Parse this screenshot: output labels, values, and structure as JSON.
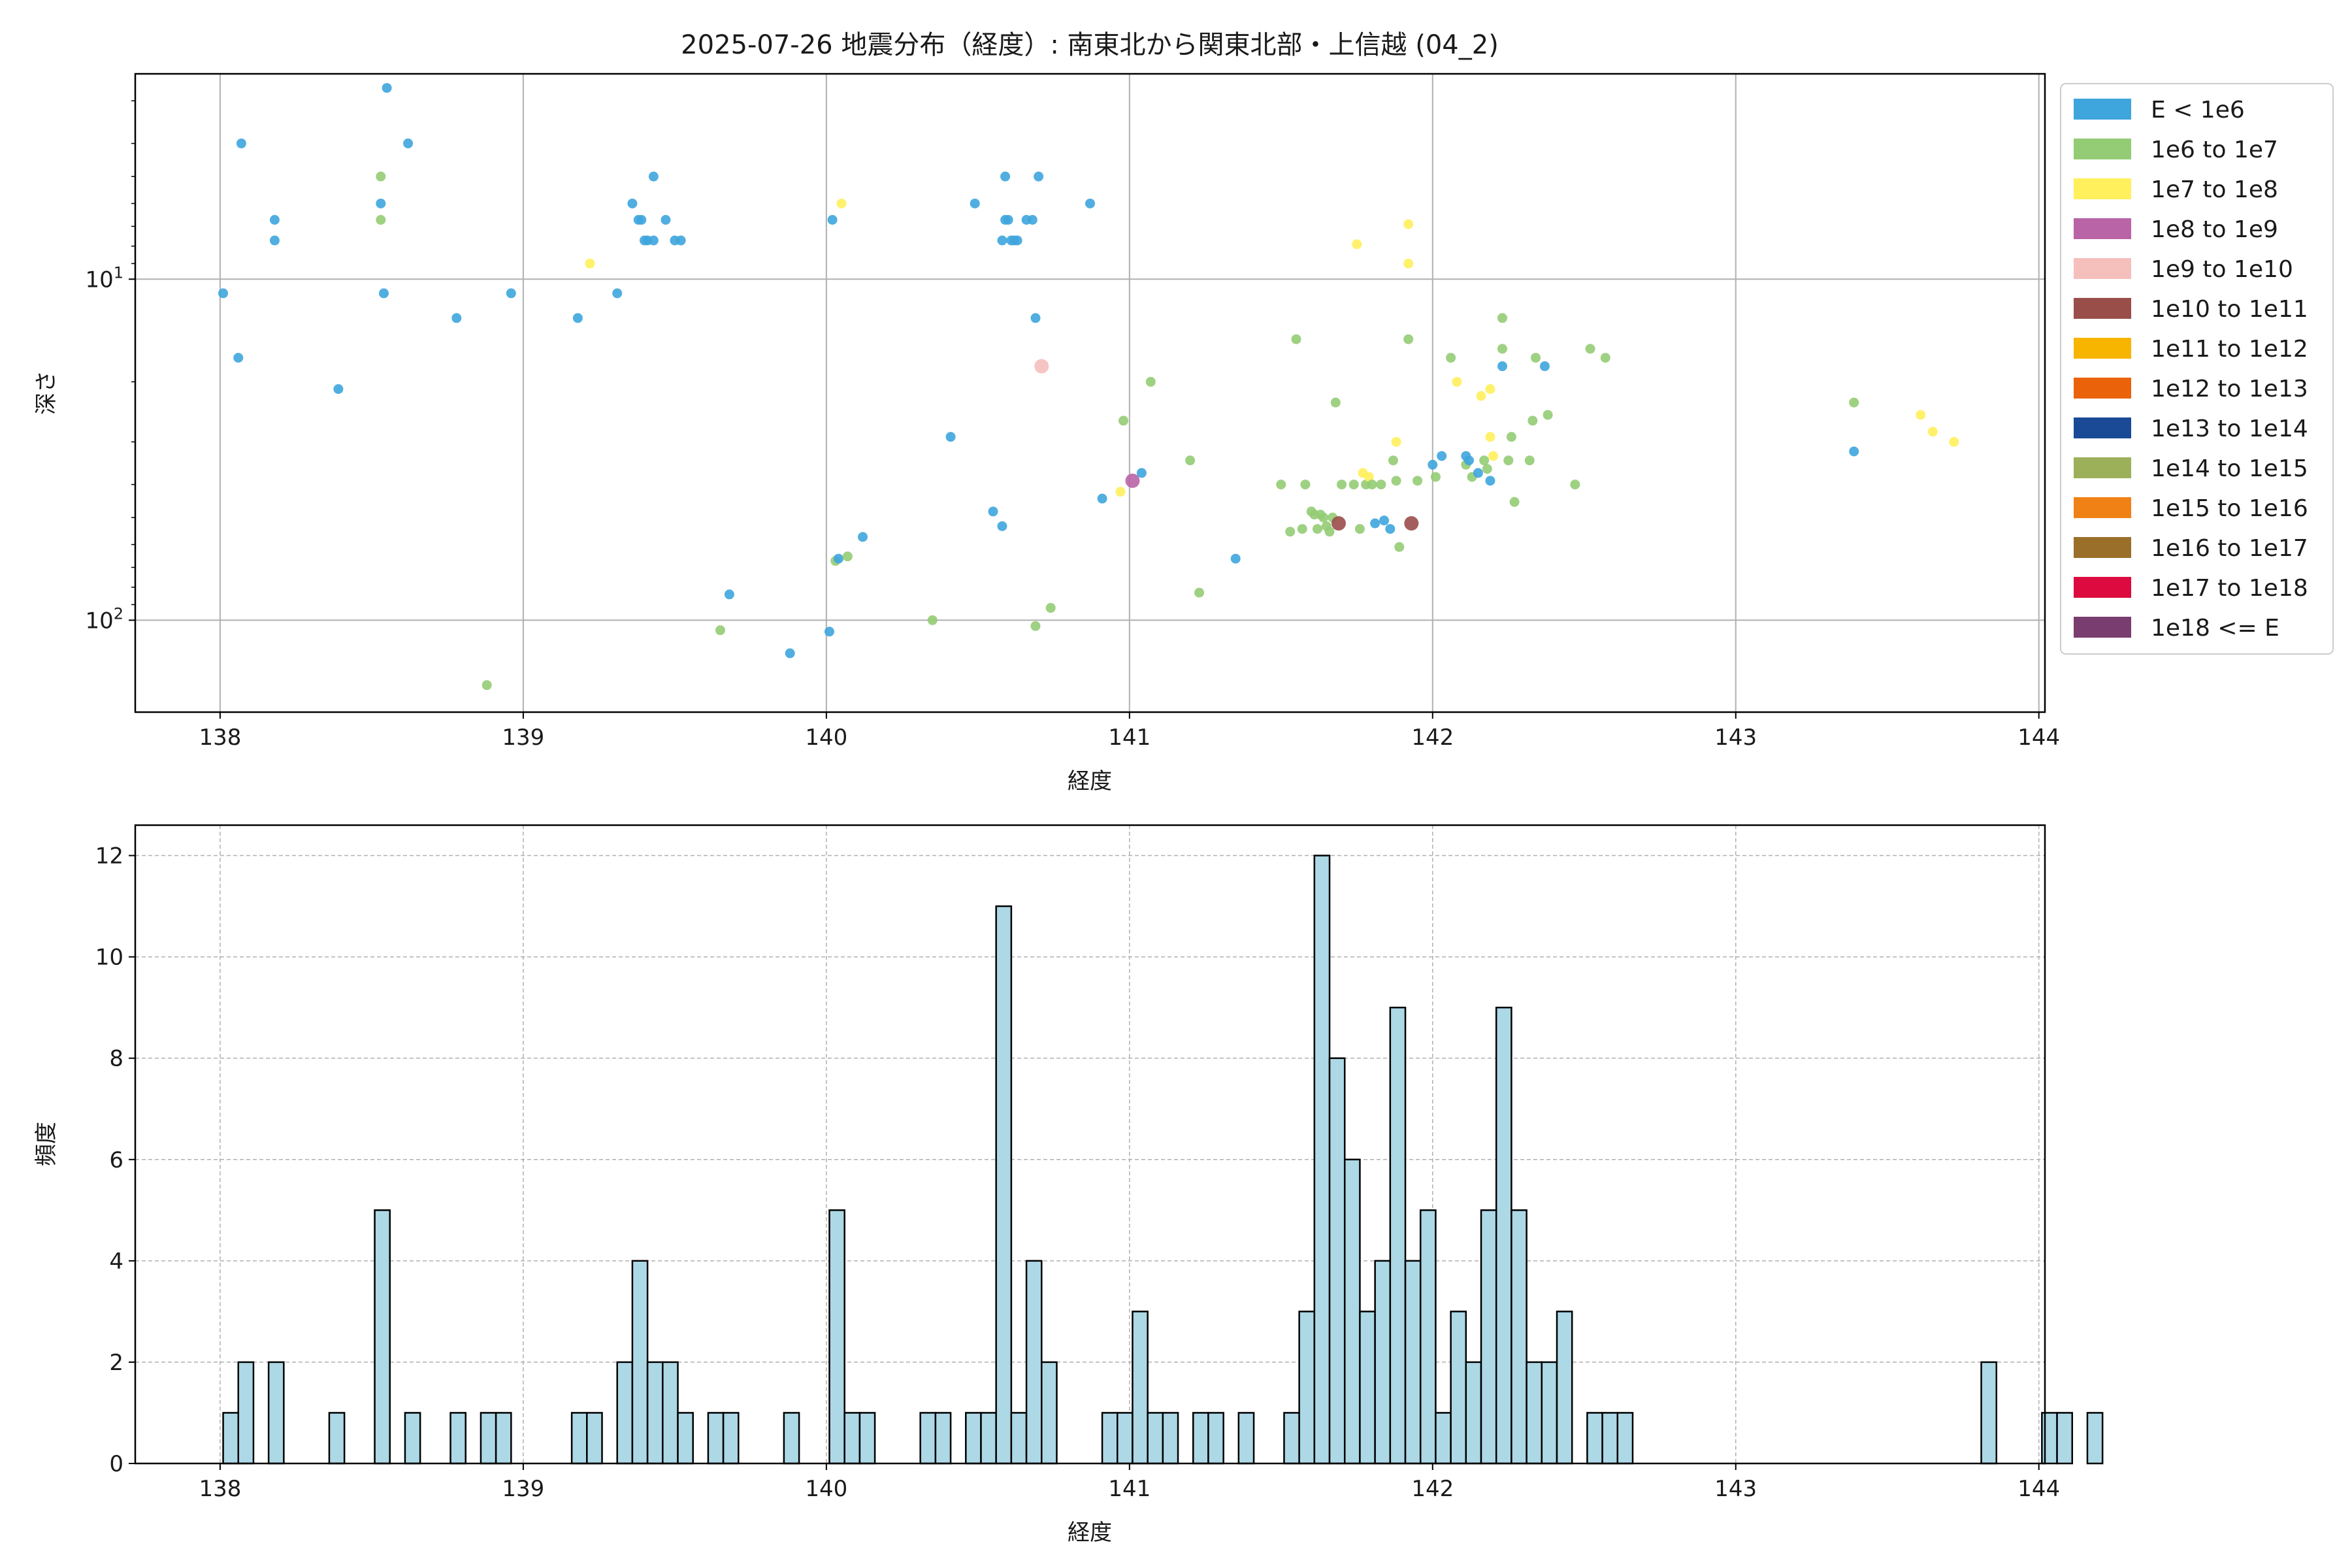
{
  "title": "2025-07-26 地震分布（経度）: 南東北から関東北部・上信越 (04_2)",
  "chart_data": [
    {
      "type": "scatter",
      "xlabel": "経度",
      "ylabel": "深さ",
      "yscale": "log",
      "yinverted": true,
      "xlim": [
        137.72,
        144.02
      ],
      "ylim": [
        186,
        2.5
      ],
      "xticks": [
        138,
        139,
        140,
        141,
        142,
        143,
        144
      ],
      "yticks": [
        {
          "value": 10,
          "base": "10",
          "exp": "1"
        },
        {
          "value": 100,
          "base": "10",
          "exp": "2"
        }
      ],
      "grid": true,
      "legend_position": "outside-right",
      "legend": [
        {
          "label": "E < 1e6",
          "color": "#3ea5dd"
        },
        {
          "label": "1e6 to 1e7",
          "color": "#93cc74"
        },
        {
          "label": "1e7 to 1e8",
          "color": "#fff05c"
        },
        {
          "label": "1e8 to 1e9",
          "color": "#b964a6"
        },
        {
          "label": "1e9 to 1e10",
          "color": "#f5bfbc"
        },
        {
          "label": "1e10 to 1e11",
          "color": "#9a4e4a"
        },
        {
          "label": "1e11 to 1e12",
          "color": "#f7b500"
        },
        {
          "label": "1e12 to 1e13",
          "color": "#ea6209"
        },
        {
          "label": "1e13 to 1e14",
          "color": "#1a4a96"
        },
        {
          "label": "1e14 to 1e15",
          "color": "#9cb05a"
        },
        {
          "label": "1e15 to 1e16",
          "color": "#f08215"
        },
        {
          "label": "1e16 to 1e17",
          "color": "#9a6f2a"
        },
        {
          "label": "1e17 to 1e18",
          "color": "#dc0a3e"
        },
        {
          "label": "1e18 <= E",
          "color": "#7a3d6f"
        }
      ],
      "points": [
        {
          "x": 138.01,
          "y": 11,
          "c": 0
        },
        {
          "x": 138.06,
          "y": 17,
          "c": 0
        },
        {
          "x": 138.07,
          "y": 4,
          "c": 0
        },
        {
          "x": 138.18,
          "y": 6.7,
          "c": 0
        },
        {
          "x": 138.18,
          "y": 7.7,
          "c": 0
        },
        {
          "x": 138.39,
          "y": 21,
          "c": 0
        },
        {
          "x": 138.53,
          "y": 5,
          "c": 1
        },
        {
          "x": 138.53,
          "y": 6,
          "c": 0
        },
        {
          "x": 138.53,
          "y": 6.7,
          "c": 1
        },
        {
          "x": 138.54,
          "y": 11,
          "c": 0
        },
        {
          "x": 138.55,
          "y": 2.75,
          "c": 0
        },
        {
          "x": 138.62,
          "y": 4,
          "c": 0
        },
        {
          "x": 138.78,
          "y": 13,
          "c": 0
        },
        {
          "x": 138.88,
          "y": 155,
          "c": 1
        },
        {
          "x": 138.96,
          "y": 11,
          "c": 0
        },
        {
          "x": 139.18,
          "y": 13,
          "c": 0
        },
        {
          "x": 139.22,
          "y": 9,
          "c": 2
        },
        {
          "x": 139.31,
          "y": 11,
          "c": 0
        },
        {
          "x": 139.36,
          "y": 6,
          "c": 0
        },
        {
          "x": 139.38,
          "y": 6.7,
          "c": 0
        },
        {
          "x": 139.39,
          "y": 6.7,
          "c": 0
        },
        {
          "x": 139.4,
          "y": 7.7,
          "c": 0
        },
        {
          "x": 139.41,
          "y": 7.7,
          "c": 0
        },
        {
          "x": 139.43,
          "y": 5,
          "c": 0
        },
        {
          "x": 139.43,
          "y": 7.7,
          "c": 0
        },
        {
          "x": 139.47,
          "y": 6.7,
          "c": 0
        },
        {
          "x": 139.5,
          "y": 7.7,
          "c": 0
        },
        {
          "x": 139.52,
          "y": 7.7,
          "c": 0
        },
        {
          "x": 139.65,
          "y": 107,
          "c": 1
        },
        {
          "x": 139.68,
          "y": 84,
          "c": 0
        },
        {
          "x": 139.88,
          "y": 125,
          "c": 0
        },
        {
          "x": 140.01,
          "y": 108,
          "c": 0
        },
        {
          "x": 140.02,
          "y": 6.7,
          "c": 0
        },
        {
          "x": 140.03,
          "y": 67,
          "c": 1
        },
        {
          "x": 140.04,
          "y": 66,
          "c": 0
        },
        {
          "x": 140.05,
          "y": 6,
          "c": 2
        },
        {
          "x": 140.07,
          "y": 65,
          "c": 1
        },
        {
          "x": 140.12,
          "y": 57,
          "c": 0
        },
        {
          "x": 140.35,
          "y": 100,
          "c": 1
        },
        {
          "x": 140.41,
          "y": 29,
          "c": 0
        },
        {
          "x": 140.49,
          "y": 6,
          "c": 0
        },
        {
          "x": 140.55,
          "y": 48,
          "c": 0
        },
        {
          "x": 140.58,
          "y": 7.7,
          "c": 0
        },
        {
          "x": 140.58,
          "y": 53,
          "c": 0
        },
        {
          "x": 140.59,
          "y": 5,
          "c": 0
        },
        {
          "x": 140.59,
          "y": 6.7,
          "c": 0
        },
        {
          "x": 140.6,
          "y": 6.7,
          "c": 0
        },
        {
          "x": 140.61,
          "y": 7.7,
          "c": 0
        },
        {
          "x": 140.62,
          "y": 7.7,
          "c": 0
        },
        {
          "x": 140.63,
          "y": 7.7,
          "c": 0
        },
        {
          "x": 140.66,
          "y": 6.7,
          "c": 0
        },
        {
          "x": 140.68,
          "y": 6.7,
          "c": 0
        },
        {
          "x": 140.69,
          "y": 13,
          "c": 0
        },
        {
          "x": 140.69,
          "y": 104,
          "c": 1
        },
        {
          "x": 140.7,
          "y": 5,
          "c": 0
        },
        {
          "x": 140.71,
          "y": 18,
          "c": 4
        },
        {
          "x": 140.74,
          "y": 92,
          "c": 1
        },
        {
          "x": 140.87,
          "y": 6,
          "c": 0
        },
        {
          "x": 140.91,
          "y": 44,
          "c": 0
        },
        {
          "x": 140.97,
          "y": 42,
          "c": 2
        },
        {
          "x": 140.98,
          "y": 26,
          "c": 1
        },
        {
          "x": 141.01,
          "y": 39,
          "c": 3
        },
        {
          "x": 141.04,
          "y": 37,
          "c": 0
        },
        {
          "x": 141.07,
          "y": 20,
          "c": 1
        },
        {
          "x": 141.2,
          "y": 34,
          "c": 1
        },
        {
          "x": 141.23,
          "y": 83,
          "c": 1
        },
        {
          "x": 141.35,
          "y": 66,
          "c": 0
        },
        {
          "x": 141.5,
          "y": 40,
          "c": 1
        },
        {
          "x": 141.53,
          "y": 55,
          "c": 1
        },
        {
          "x": 141.55,
          "y": 15,
          "c": 1
        },
        {
          "x": 141.57,
          "y": 54,
          "c": 1
        },
        {
          "x": 141.58,
          "y": 40,
          "c": 1
        },
        {
          "x": 141.6,
          "y": 48,
          "c": 1
        },
        {
          "x": 141.61,
          "y": 49,
          "c": 1
        },
        {
          "x": 141.62,
          "y": 54,
          "c": 1
        },
        {
          "x": 141.63,
          "y": 49,
          "c": 1
        },
        {
          "x": 141.64,
          "y": 50,
          "c": 1
        },
        {
          "x": 141.65,
          "y": 53,
          "c": 1
        },
        {
          "x": 141.66,
          "y": 55,
          "c": 1
        },
        {
          "x": 141.67,
          "y": 50,
          "c": 1
        },
        {
          "x": 141.68,
          "y": 23,
          "c": 1
        },
        {
          "x": 141.69,
          "y": 52,
          "c": 5
        },
        {
          "x": 141.7,
          "y": 40,
          "c": 1
        },
        {
          "x": 141.74,
          "y": 40,
          "c": 1
        },
        {
          "x": 141.75,
          "y": 7.9,
          "c": 2
        },
        {
          "x": 141.76,
          "y": 54,
          "c": 1
        },
        {
          "x": 141.77,
          "y": 37,
          "c": 2
        },
        {
          "x": 141.78,
          "y": 40,
          "c": 1
        },
        {
          "x": 141.79,
          "y": 38,
          "c": 2
        },
        {
          "x": 141.8,
          "y": 40,
          "c": 1
        },
        {
          "x": 141.81,
          "y": 52,
          "c": 0
        },
        {
          "x": 141.83,
          "y": 40,
          "c": 1
        },
        {
          "x": 141.84,
          "y": 51,
          "c": 0
        },
        {
          "x": 141.86,
          "y": 54,
          "c": 0
        },
        {
          "x": 141.87,
          "y": 34,
          "c": 1
        },
        {
          "x": 141.88,
          "y": 30,
          "c": 2
        },
        {
          "x": 141.88,
          "y": 39,
          "c": 1
        },
        {
          "x": 141.89,
          "y": 61,
          "c": 1
        },
        {
          "x": 141.92,
          "y": 6.9,
          "c": 2
        },
        {
          "x": 141.92,
          "y": 9,
          "c": 2
        },
        {
          "x": 141.92,
          "y": 15,
          "c": 1
        },
        {
          "x": 141.93,
          "y": 52,
          "c": 5
        },
        {
          "x": 141.95,
          "y": 39,
          "c": 1
        },
        {
          "x": 142.0,
          "y": 35,
          "c": 0
        },
        {
          "x": 142.01,
          "y": 38,
          "c": 1
        },
        {
          "x": 142.03,
          "y": 33,
          "c": 0
        },
        {
          "x": 142.06,
          "y": 17,
          "c": 1
        },
        {
          "x": 142.08,
          "y": 20,
          "c": 2
        },
        {
          "x": 142.11,
          "y": 35,
          "c": 1
        },
        {
          "x": 142.11,
          "y": 33,
          "c": 0
        },
        {
          "x": 142.12,
          "y": 34,
          "c": 0
        },
        {
          "x": 142.13,
          "y": 38,
          "c": 1
        },
        {
          "x": 142.15,
          "y": 37,
          "c": 0
        },
        {
          "x": 142.16,
          "y": 22,
          "c": 2
        },
        {
          "x": 142.17,
          "y": 34,
          "c": 1
        },
        {
          "x": 142.18,
          "y": 36,
          "c": 1
        },
        {
          "x": 142.19,
          "y": 39,
          "c": 0
        },
        {
          "x": 142.19,
          "y": 21,
          "c": 2
        },
        {
          "x": 142.19,
          "y": 29,
          "c": 2
        },
        {
          "x": 142.2,
          "y": 33,
          "c": 2
        },
        {
          "x": 142.23,
          "y": 13,
          "c": 1
        },
        {
          "x": 142.23,
          "y": 16,
          "c": 1
        },
        {
          "x": 142.23,
          "y": 18,
          "c": 0
        },
        {
          "x": 142.25,
          "y": 34,
          "c": 1
        },
        {
          "x": 142.26,
          "y": 29,
          "c": 1
        },
        {
          "x": 142.27,
          "y": 45,
          "c": 1
        },
        {
          "x": 142.32,
          "y": 34,
          "c": 1
        },
        {
          "x": 142.33,
          "y": 26,
          "c": 1
        },
        {
          "x": 142.34,
          "y": 17,
          "c": 1
        },
        {
          "x": 142.37,
          "y": 18,
          "c": 0
        },
        {
          "x": 142.38,
          "y": 25,
          "c": 1
        },
        {
          "x": 142.47,
          "y": 40,
          "c": 1
        },
        {
          "x": 142.52,
          "y": 16,
          "c": 1
        },
        {
          "x": 142.57,
          "y": 17,
          "c": 1
        },
        {
          "x": 143.39,
          "y": 23,
          "c": 1
        },
        {
          "x": 143.39,
          "y": 32,
          "c": 0
        },
        {
          "x": 143.61,
          "y": 25,
          "c": 2
        },
        {
          "x": 143.65,
          "y": 28,
          "c": 2
        },
        {
          "x": 143.72,
          "y": 30,
          "c": 2
        }
      ]
    },
    {
      "type": "bar",
      "xlabel": "経度",
      "ylabel": "頻度",
      "xlim": [
        137.72,
        144.02
      ],
      "ylim": [
        0,
        12.6
      ],
      "xticks": [
        138,
        139,
        140,
        141,
        142,
        143,
        144
      ],
      "yticks": [
        0,
        2,
        4,
        6,
        8,
        10,
        12
      ],
      "grid": true,
      "bin_start": 138.01,
      "bin_width": 0.05,
      "bar_color": "#add8e6",
      "edge_color": "#000000",
      "counts": [
        1,
        2,
        0,
        2,
        0,
        0,
        0,
        1,
        0,
        0,
        5,
        0,
        1,
        0,
        0,
        1,
        0,
        1,
        1,
        0,
        0,
        0,
        0,
        1,
        1,
        0,
        2,
        4,
        2,
        2,
        1,
        0,
        1,
        1,
        0,
        0,
        0,
        1,
        0,
        0,
        5,
        1,
        1,
        0,
        0,
        0,
        1,
        1,
        0,
        1,
        1,
        11,
        1,
        4,
        2,
        0,
        0,
        0,
        1,
        1,
        3,
        1,
        1,
        0,
        1,
        1,
        0,
        1,
        0,
        0,
        1,
        3,
        12,
        8,
        6,
        3,
        4,
        9,
        4,
        5,
        1,
        3,
        2,
        5,
        9,
        5,
        2,
        2,
        3,
        0,
        1,
        1,
        1,
        0,
        0,
        0,
        0,
        0,
        0,
        0,
        0,
        0,
        0,
        0,
        0,
        0,
        0,
        0,
        0,
        0,
        0,
        0,
        0,
        0,
        0,
        0,
        2,
        0,
        0,
        0,
        1,
        1,
        0,
        1
      ]
    }
  ]
}
